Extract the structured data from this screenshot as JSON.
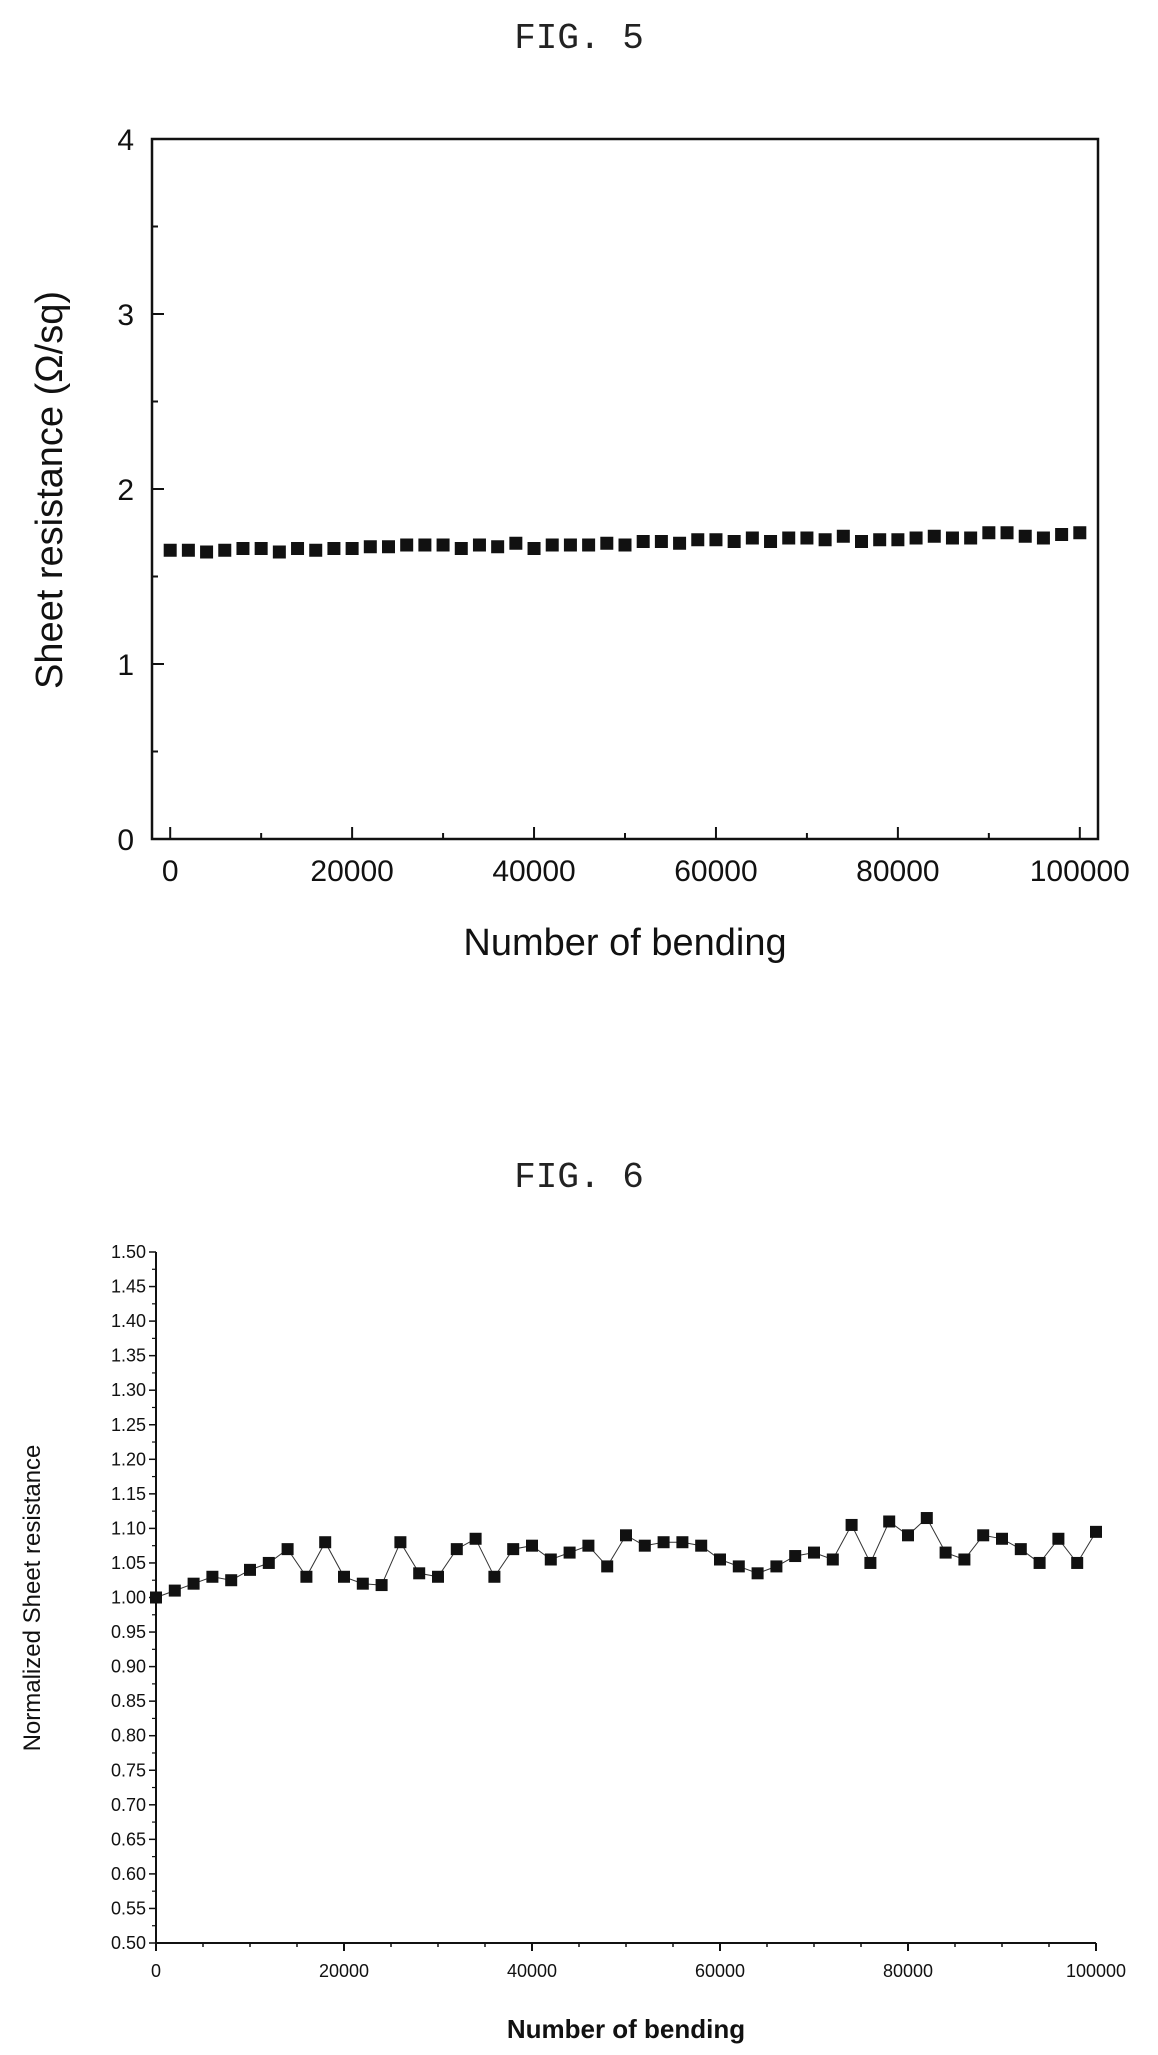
{
  "chart_data": [
    {
      "type": "scatter",
      "figure_label": "FIG. 5",
      "title": "",
      "xlabel": "Number of bending",
      "ylabel": "Sheet resistance (Ω/sq)",
      "xlim": [
        -2000,
        102000
      ],
      "ylim": [
        0,
        4
      ],
      "x_ticks": [
        0,
        20000,
        40000,
        60000,
        80000,
        100000
      ],
      "y_ticks": [
        0,
        1,
        2,
        3,
        4
      ],
      "grid": false,
      "connected": false,
      "x": [
        0,
        2000,
        4000,
        6000,
        8000,
        10000,
        12000,
        14000,
        16000,
        18000,
        20000,
        22000,
        24000,
        26000,
        28000,
        30000,
        32000,
        34000,
        36000,
        38000,
        40000,
        42000,
        44000,
        46000,
        48000,
        50000,
        52000,
        54000,
        56000,
        58000,
        60000,
        62000,
        64000,
        66000,
        68000,
        70000,
        72000,
        74000,
        76000,
        78000,
        80000,
        82000,
        84000,
        86000,
        88000,
        90000,
        92000,
        94000,
        96000,
        98000,
        100000
      ],
      "values": [
        1.65,
        1.65,
        1.64,
        1.65,
        1.66,
        1.66,
        1.64,
        1.66,
        1.65,
        1.66,
        1.66,
        1.67,
        1.67,
        1.68,
        1.68,
        1.68,
        1.66,
        1.68,
        1.67,
        1.69,
        1.66,
        1.68,
        1.68,
        1.68,
        1.69,
        1.68,
        1.7,
        1.7,
        1.69,
        1.71,
        1.71,
        1.7,
        1.72,
        1.7,
        1.72,
        1.72,
        1.71,
        1.73,
        1.7,
        1.71,
        1.71,
        1.72,
        1.73,
        1.72,
        1.72,
        1.75,
        1.75,
        1.73,
        1.72,
        1.74,
        1.75
      ]
    },
    {
      "type": "line",
      "figure_label": "FIG. 6",
      "title": "",
      "xlabel": "Number of bending",
      "ylabel": "Normalized Sheet resistance",
      "xlim": [
        0,
        100000
      ],
      "ylim": [
        0.5,
        1.5
      ],
      "x_ticks": [
        0,
        20000,
        40000,
        60000,
        80000,
        100000
      ],
      "y_ticks": [
        "0.50",
        "0.55",
        "0.60",
        "0.65",
        "0.70",
        "0.75",
        "0.80",
        "0.85",
        "0.90",
        "0.95",
        "1.00",
        "1.05",
        "1.10",
        "1.15",
        "1.20",
        "1.25",
        "1.30",
        "1.35",
        "1.40",
        "1.45",
        "1.50"
      ],
      "grid": false,
      "connected": true,
      "marker": "square",
      "x": [
        0,
        2000,
        4000,
        6000,
        8000,
        10000,
        12000,
        14000,
        16000,
        18000,
        20000,
        22000,
        24000,
        26000,
        28000,
        30000,
        32000,
        34000,
        36000,
        38000,
        40000,
        42000,
        44000,
        46000,
        48000,
        50000,
        52000,
        54000,
        56000,
        58000,
        60000,
        62000,
        64000,
        66000,
        68000,
        70000,
        72000,
        74000,
        76000,
        78000,
        80000,
        82000,
        84000,
        86000,
        88000,
        90000,
        92000,
        94000,
        96000,
        98000,
        100000
      ],
      "values": [
        1.0,
        1.01,
        1.02,
        1.03,
        1.025,
        1.04,
        1.05,
        1.07,
        1.03,
        1.08,
        1.03,
        1.02,
        1.018,
        1.08,
        1.035,
        1.03,
        1.07,
        1.085,
        1.03,
        1.07,
        1.075,
        1.055,
        1.065,
        1.075,
        1.045,
        1.09,
        1.075,
        1.08,
        1.08,
        1.075,
        1.055,
        1.045,
        1.035,
        1.045,
        1.06,
        1.065,
        1.055,
        1.105,
        1.05,
        1.11,
        1.09,
        1.115,
        1.065,
        1.055,
        1.09,
        1.085,
        1.07,
        1.05,
        1.085,
        1.05,
        1.095
      ]
    }
  ]
}
